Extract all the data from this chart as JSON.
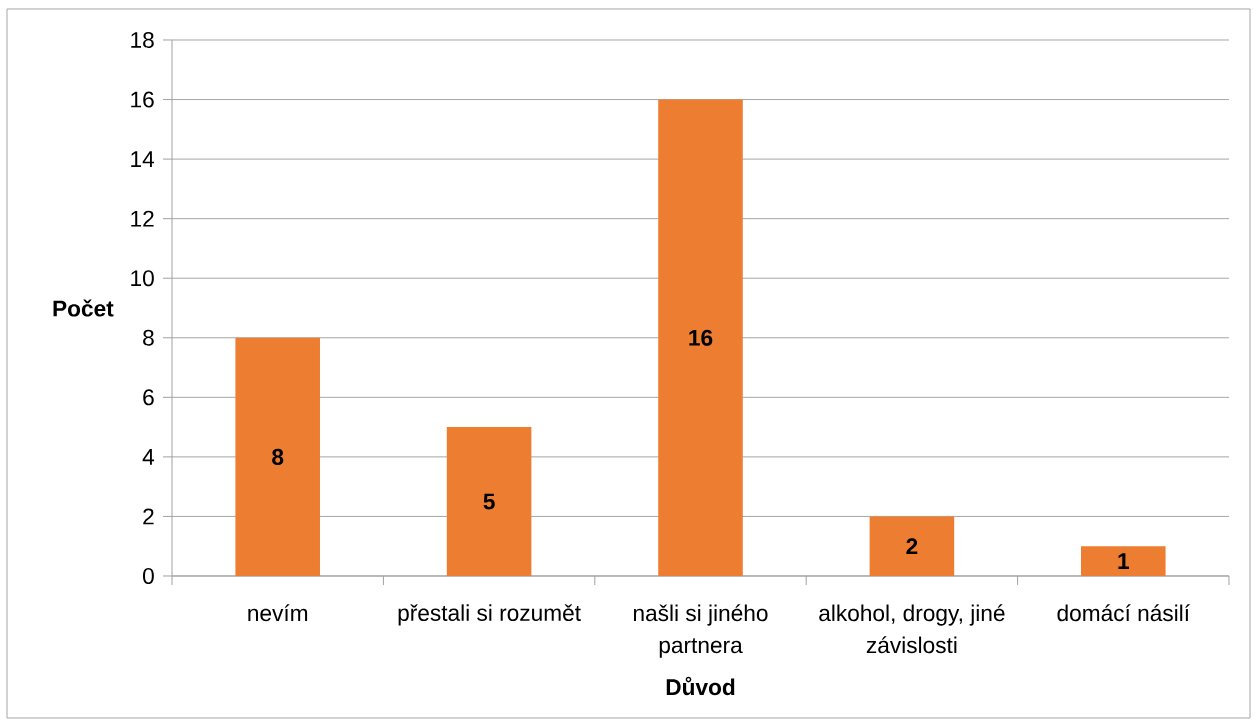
{
  "chart_data": {
    "type": "bar",
    "xlabel": "Důvod",
    "ylabel": "Počet",
    "categories": [
      "nevím",
      "přestali si rozumět",
      "našli si jiného partnera",
      "alkohol, drogy, jiné závislosti",
      "domácí násilí"
    ],
    "values": [
      8,
      5,
      16,
      2,
      1
    ],
    "color": "#ed7d31",
    "ylim": [
      0,
      18
    ],
    "yticks": [
      0,
      2,
      4,
      6,
      8,
      10,
      12,
      14,
      16,
      18
    ],
    "grid": "y",
    "data_labels": true
  }
}
